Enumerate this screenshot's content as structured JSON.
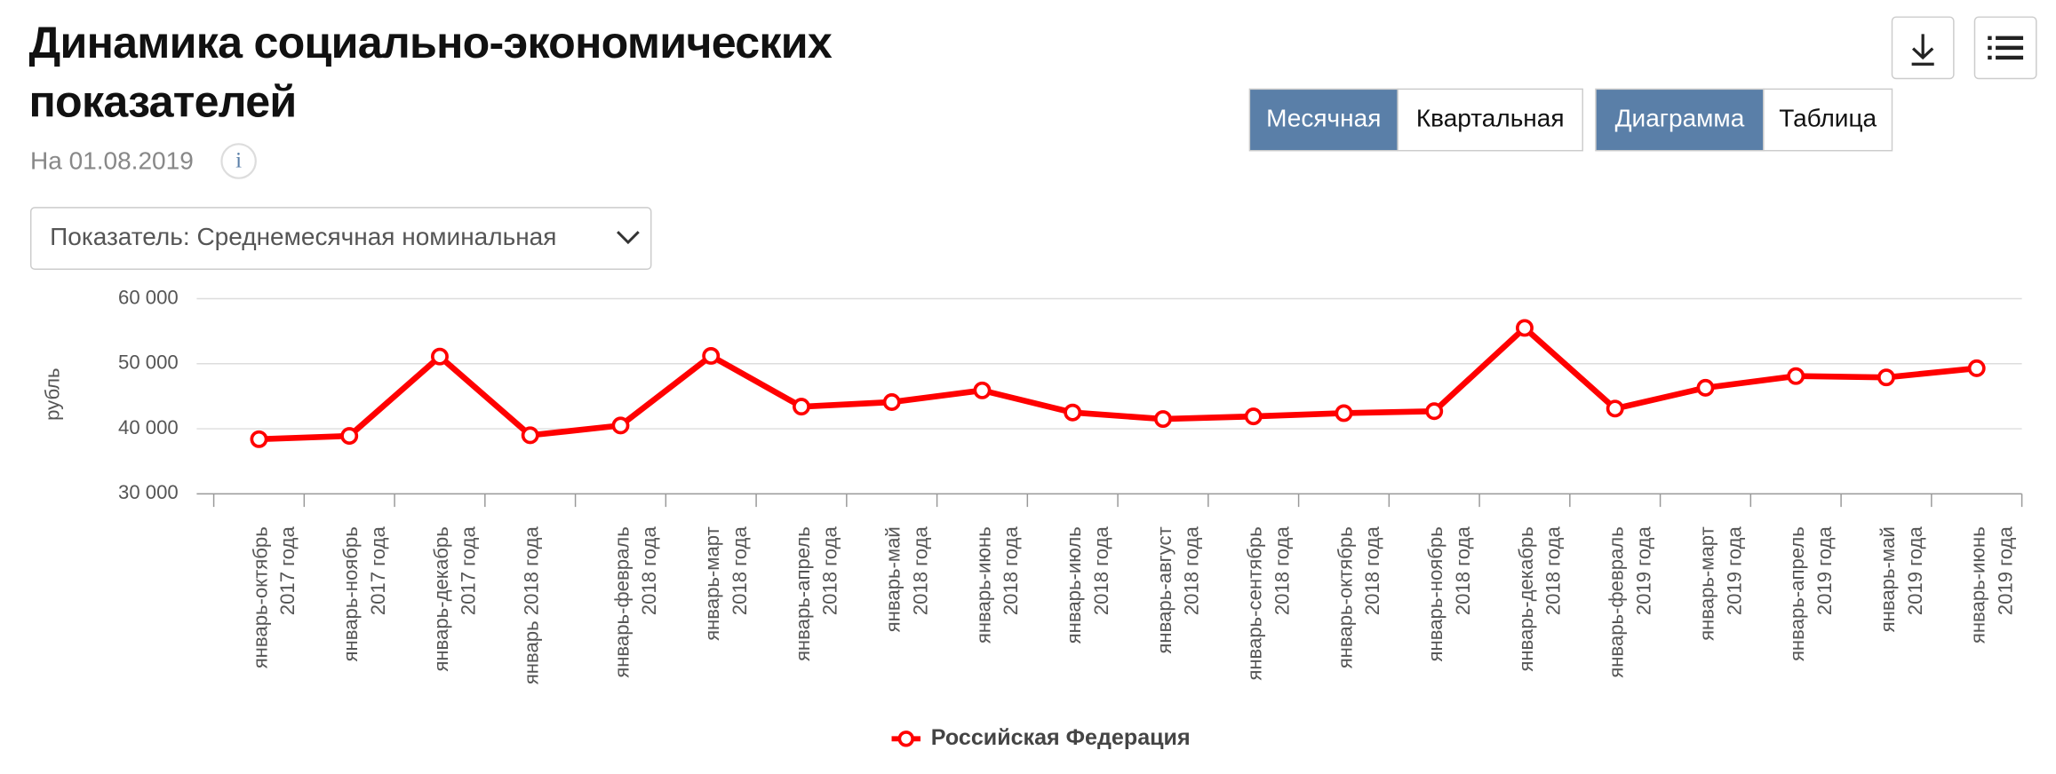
{
  "page": {
    "title": [
      "Динамика социально-экономических",
      "показателей"
    ],
    "date": "На 01.08.2019",
    "info": "i",
    "period_buttons": [
      "Месячная",
      "Квартальная"
    ],
    "view_buttons": [
      "Диаграмма",
      "Таблица"
    ],
    "dropdown": "Показатель: Среднемесячная номинальная"
  },
  "chart_data": {
    "type": "line",
    "y_label": "рубль",
    "categories": [
      [
        "январь-октябрь",
        "2017 года"
      ],
      [
        "январь-ноябрь",
        "2017 года"
      ],
      [
        "январь-декабрь",
        "2017 года"
      ],
      [
        "январь 2018 года"
      ],
      [
        "январь-февраль",
        "2018 года"
      ],
      [
        "январь-март",
        "2018 года"
      ],
      [
        "январь-апрель",
        "2018 года"
      ],
      [
        "январь-май",
        "2018 года"
      ],
      [
        "январь-июнь",
        "2018 года"
      ],
      [
        "январь-июль",
        "2018 года"
      ],
      [
        "январь-август",
        "2018 года"
      ],
      [
        "январь-сентябрь",
        "2018 года"
      ],
      [
        "январь-октябрь",
        "2018 года"
      ],
      [
        "январь-ноябрь",
        "2018 года"
      ],
      [
        "январь-декабрь",
        "2018 года"
      ],
      [
        "январь-февраль",
        "2019 года"
      ],
      [
        "январь-март",
        "2019 года"
      ],
      [
        "январь-апрель",
        "2019 года"
      ],
      [
        "январь-май",
        "2019 года"
      ],
      [
        "январь-июнь",
        "2019 года"
      ]
    ],
    "series": [
      {
        "name": "Российская Федерация",
        "color": "#ff0000",
        "values": [
          38400,
          38900,
          51100,
          39000,
          40500,
          51200,
          43400,
          44100,
          45900,
          42500,
          41500,
          41900,
          42400,
          42700,
          55500,
          43100,
          46300,
          48100,
          47900,
          49300
        ]
      }
    ],
    "ylim": [
      30000,
      60000
    ],
    "yticks": [
      {
        "value": 30000,
        "label": "30 000"
      },
      {
        "value": 40000,
        "label": "40 000"
      },
      {
        "value": 50000,
        "label": "50 000"
      },
      {
        "value": 60000,
        "label": "60 000"
      }
    ],
    "grid": true
  }
}
